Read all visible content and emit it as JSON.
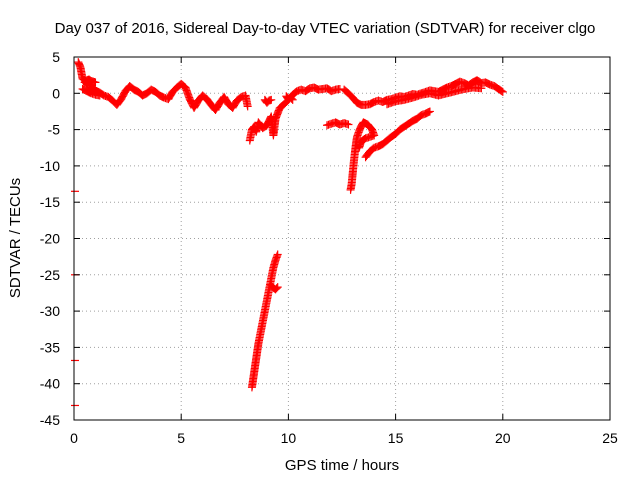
{
  "chart_data": {
    "type": "scatter",
    "title": "Day 037 of 2016, Sidereal Day-to-day VTEC variation (SDTVAR) for receiver clgo",
    "xlabel": "GPS time / hours",
    "ylabel": "SDTVAR / TECUs",
    "xlim": [
      0,
      25
    ],
    "ylim": [
      -45,
      5
    ],
    "xticks": [
      "0",
      "5",
      "10",
      "15",
      "20",
      "25"
    ],
    "yticks": [
      "5",
      "0",
      "-5",
      "-10",
      "-15",
      "-20",
      "-25",
      "-30",
      "-35",
      "-40",
      "-45"
    ],
    "grid": true,
    "marker": "+",
    "series_color": "#ff0000",
    "series": [
      {
        "name": "SDTVAR",
        "segments": [
          [
            [
              0.2,
              4.3
            ],
            [
              0.3,
              3.6
            ],
            [
              0.35,
              2.8
            ],
            [
              0.4,
              2.0
            ],
            [
              0.5,
              1.8
            ],
            [
              0.6,
              1.2
            ],
            [
              0.7,
              1.5
            ],
            [
              0.8,
              0.8
            ],
            [
              1.0,
              0.4
            ],
            [
              1.2,
              0.1
            ],
            [
              1.4,
              -0.3
            ],
            [
              1.6,
              -0.5
            ],
            [
              1.8,
              -1.0
            ],
            [
              2.0,
              -1.6
            ],
            [
              2.2,
              -0.8
            ],
            [
              2.4,
              0.3
            ],
            [
              2.6,
              1.0
            ],
            [
              2.8,
              0.5
            ],
            [
              3.0,
              0.2
            ],
            [
              3.2,
              -0.3
            ],
            [
              3.4,
              0.0
            ],
            [
              3.6,
              0.5
            ],
            [
              3.8,
              0.2
            ],
            [
              4.0,
              -0.3
            ],
            [
              4.2,
              -0.6
            ],
            [
              4.4,
              -0.8
            ],
            [
              4.6,
              0.2
            ],
            [
              4.8,
              0.8
            ],
            [
              5.0,
              1.3
            ],
            [
              5.2,
              0.8
            ],
            [
              5.4,
              -0.8
            ],
            [
              5.6,
              -2.0
            ],
            [
              5.8,
              -1.0
            ],
            [
              6.0,
              -0.3
            ],
            [
              6.2,
              -0.8
            ],
            [
              6.4,
              -1.6
            ],
            [
              6.6,
              -2.3
            ],
            [
              6.8,
              -1.3
            ],
            [
              7.0,
              -0.5
            ],
            [
              7.2,
              -1.5
            ],
            [
              7.4,
              -2.0
            ],
            [
              7.6,
              -1.0
            ],
            [
              7.8,
              -0.5
            ],
            [
              8.0,
              -0.3
            ],
            [
              8.1,
              -1.8
            ]
          ],
          [
            [
              0.5,
              1.5
            ],
            [
              0.6,
              1.8
            ],
            [
              0.7,
              1.9
            ],
            [
              0.8,
              1.7
            ],
            [
              0.9,
              1.6
            ],
            [
              1.0,
              1.5
            ]
          ],
          [
            [
              0.4,
              0.6
            ],
            [
              0.6,
              0.3
            ],
            [
              0.8,
              0.0
            ],
            [
              1.0,
              -0.2
            ],
            [
              1.2,
              -0.3
            ]
          ],
          [
            [
              8.2,
              -6.5
            ],
            [
              8.3,
              -5.0
            ],
            [
              8.4,
              -4.6
            ],
            [
              8.5,
              -5.3
            ],
            [
              8.6,
              -4.0
            ],
            [
              8.8,
              -4.8
            ],
            [
              9.0,
              -4.4
            ],
            [
              9.2,
              -3.2
            ],
            [
              9.3,
              -5.8
            ],
            [
              9.4,
              -3.5
            ],
            [
              9.6,
              -2.0
            ],
            [
              9.8,
              -1.5
            ],
            [
              10.0,
              -0.9
            ],
            [
              10.2,
              -0.2
            ],
            [
              10.4,
              0.3
            ],
            [
              10.6,
              0.5
            ],
            [
              10.8,
              0.3
            ],
            [
              11.0,
              0.7
            ],
            [
              11.2,
              0.8
            ],
            [
              11.4,
              0.5
            ],
            [
              11.6,
              0.6
            ],
            [
              11.8,
              0.7
            ],
            [
              12.0,
              0.3
            ],
            [
              12.2,
              0.5
            ],
            [
              12.4,
              0.6
            ]
          ],
          [
            [
              8.9,
              -0.9
            ],
            [
              9.0,
              -1.3
            ],
            [
              9.1,
              -1.0
            ],
            [
              9.2,
              -0.9
            ]
          ],
          [
            [
              9.9,
              -0.4
            ],
            [
              10.0,
              -0.8
            ],
            [
              10.1,
              -0.6
            ],
            [
              10.2,
              -0.9
            ]
          ],
          [
            [
              8.3,
              -40.5
            ],
            [
              8.4,
              -38.5
            ],
            [
              8.5,
              -36.5
            ],
            [
              8.6,
              -34.5
            ],
            [
              8.7,
              -33.0
            ],
            [
              8.8,
              -31.5
            ],
            [
              8.9,
              -30.0
            ],
            [
              9.0,
              -28.5
            ],
            [
              9.1,
              -27.0
            ],
            [
              9.2,
              -25.5
            ],
            [
              9.3,
              -24.0
            ],
            [
              9.4,
              -23.0
            ],
            [
              9.5,
              -22.2
            ]
          ],
          [
            [
              9.2,
              -26.5
            ],
            [
              9.3,
              -26.8
            ],
            [
              9.4,
              -27.0
            ],
            [
              9.5,
              -26.7
            ]
          ],
          [
            [
              11.8,
              -4.4
            ],
            [
              12.0,
              -4.2
            ],
            [
              12.2,
              -4.0
            ],
            [
              12.4,
              -4.3
            ],
            [
              12.6,
              -4.1
            ],
            [
              12.8,
              -4.3
            ]
          ],
          [
            [
              12.6,
              0.5
            ],
            [
              12.8,
              0.0
            ],
            [
              13.0,
              -0.6
            ],
            [
              13.2,
              -1.3
            ],
            [
              13.4,
              -1.6
            ],
            [
              13.6,
              -1.6
            ],
            [
              13.8,
              -1.5
            ],
            [
              14.0,
              -1.2
            ],
            [
              14.2,
              -1.0
            ],
            [
              14.4,
              -1.2
            ],
            [
              14.6,
              -0.9
            ],
            [
              14.8,
              -0.8
            ],
            [
              15.0,
              -0.6
            ],
            [
              15.2,
              -0.4
            ],
            [
              15.4,
              -0.5
            ],
            [
              15.6,
              -0.3
            ],
            [
              15.8,
              -0.1
            ],
            [
              16.0,
              -0.2
            ],
            [
              16.2,
              0.0
            ],
            [
              16.4,
              0.2
            ],
            [
              16.6,
              0.4
            ],
            [
              16.8,
              0.3
            ],
            [
              17.0,
              0.2
            ],
            [
              17.2,
              0.5
            ],
            [
              17.4,
              0.8
            ],
            [
              17.6,
              1.0
            ],
            [
              17.8,
              1.3
            ],
            [
              18.0,
              1.6
            ],
            [
              18.2,
              1.4
            ],
            [
              18.4,
              1.1
            ],
            [
              18.6,
              1.5
            ],
            [
              18.8,
              1.8
            ],
            [
              19.0,
              1.4
            ],
            [
              19.2,
              1.5
            ],
            [
              19.4,
              1.2
            ],
            [
              19.6,
              1.0
            ],
            [
              19.8,
              0.6
            ],
            [
              20.0,
              0.2
            ]
          ],
          [
            [
              14.6,
              -1.5
            ],
            [
              15.0,
              -1.1
            ],
            [
              15.4,
              -0.9
            ],
            [
              15.8,
              -0.6
            ],
            [
              16.2,
              -0.2
            ],
            [
              16.6,
              0.0
            ],
            [
              17.0,
              -0.3
            ],
            [
              17.4,
              0.0
            ],
            [
              17.8,
              0.3
            ],
            [
              18.2,
              0.6
            ],
            [
              18.6,
              0.8
            ],
            [
              19.0,
              0.7
            ]
          ],
          [
            [
              12.9,
              -13.3
            ],
            [
              12.95,
              -12.5
            ],
            [
              13.0,
              -11.0
            ],
            [
              13.05,
              -9.5
            ],
            [
              13.1,
              -8.2
            ],
            [
              13.15,
              -7.0
            ],
            [
              13.2,
              -6.0
            ],
            [
              13.3,
              -5.2
            ],
            [
              13.4,
              -4.5
            ],
            [
              13.5,
              -4.0
            ],
            [
              13.7,
              -4.3
            ],
            [
              13.9,
              -5.0
            ],
            [
              14.0,
              -5.8
            ],
            [
              13.8,
              -6.0
            ],
            [
              13.6,
              -6.2
            ],
            [
              13.4,
              -6.6
            ],
            [
              13.3,
              -7.5
            ]
          ],
          [
            [
              13.6,
              -8.8
            ],
            [
              13.8,
              -8.0
            ],
            [
              14.0,
              -7.5
            ],
            [
              14.2,
              -7.3
            ],
            [
              14.4,
              -7.0
            ],
            [
              14.6,
              -6.5
            ],
            [
              14.8,
              -6.0
            ],
            [
              15.0,
              -5.6
            ],
            [
              15.2,
              -5.0
            ],
            [
              15.4,
              -4.6
            ],
            [
              15.6,
              -4.2
            ],
            [
              15.8,
              -3.8
            ],
            [
              16.0,
              -3.5
            ],
            [
              16.2,
              -3.0
            ],
            [
              16.4,
              -2.8
            ],
            [
              16.6,
              -2.5
            ]
          ]
        ],
        "isolated": [
          [
            0.0,
            -13.5
          ],
          [
            0.0,
            -25.0
          ],
          [
            0.0,
            -36.8
          ],
          [
            0.0,
            -43.0
          ]
        ]
      }
    ]
  }
}
